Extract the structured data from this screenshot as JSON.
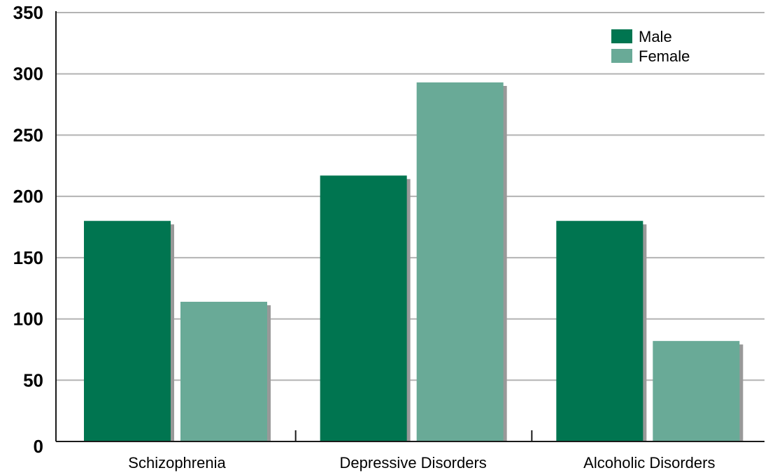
{
  "chart_data": {
    "type": "bar",
    "title": "",
    "xlabel": "",
    "ylabel": "",
    "categories": [
      "Schizophrenia",
      "Depressive Disorders",
      "Alcoholic Disorders"
    ],
    "series": [
      {
        "name": "Male",
        "values": [
          180,
          217,
          180
        ],
        "color": "#007550"
      },
      {
        "name": "Female",
        "values": [
          114,
          293,
          82
        ],
        "color": "#69aa97"
      }
    ],
    "ylim": [
      0,
      350
    ],
    "yticks": [
      0,
      50,
      100,
      150,
      200,
      250,
      300,
      350
    ],
    "grid": true,
    "legend_position": "top-right",
    "shadow_color": "#999999",
    "grid_color": "#b3b3b3"
  }
}
